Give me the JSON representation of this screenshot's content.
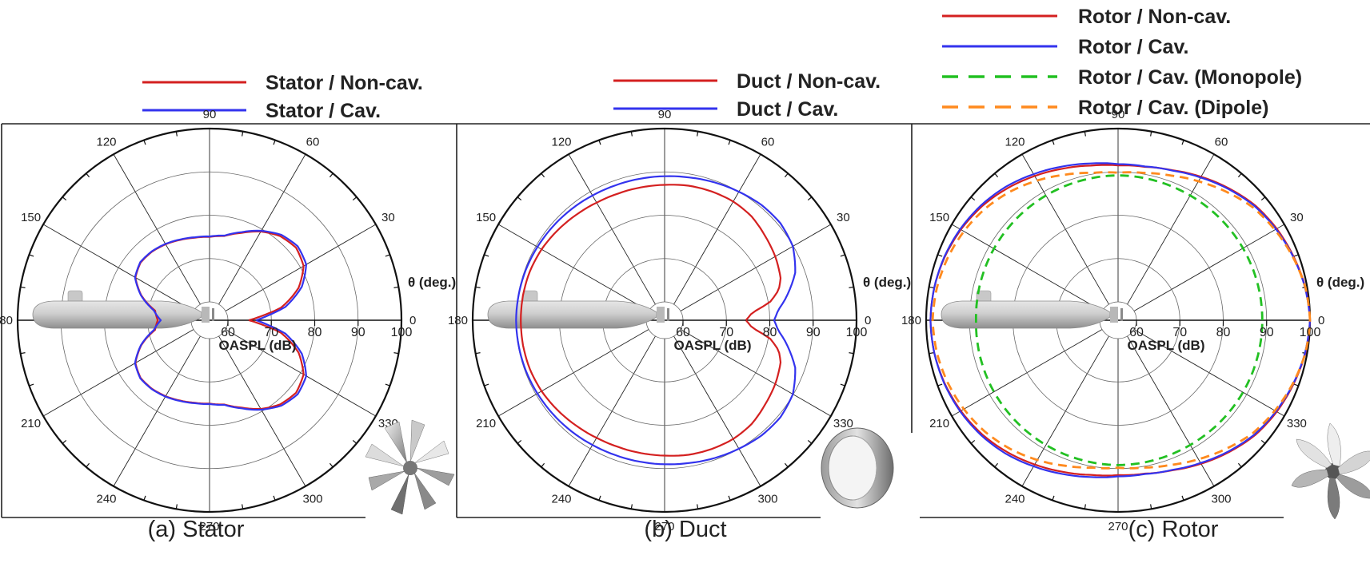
{
  "chart_data": [
    {
      "type": "polar-line",
      "caption": "(a) Stator",
      "angular_axis_label": "θ (deg.)",
      "radial_axis_label": "OASPL (dB)",
      "angle_ticks": [
        "0",
        "30",
        "60",
        "90",
        "120",
        "150",
        "180",
        "210",
        "240",
        "270",
        "300",
        "330"
      ],
      "radial_ticks": [
        "60",
        "70",
        "80",
        "90",
        "100"
      ],
      "r_range": [
        60,
        100
      ],
      "component": "stator",
      "series": [
        {
          "name": "Stator / Non-cav.",
          "color": "#d42020",
          "dash": "solid",
          "profile": [
            [
              0,
              64.8
            ],
            [
              5,
              68
            ],
            [
              10,
              72.5
            ],
            [
              20,
              77.6
            ],
            [
              30,
              80.8
            ],
            [
              40,
              81.8
            ],
            [
              50,
              81.1
            ],
            [
              60,
              79.4
            ],
            [
              70,
              77.2
            ],
            [
              80,
              75.5
            ],
            [
              90,
              75
            ],
            [
              100,
              75.1
            ],
            [
              110,
              75.5
            ],
            [
              120,
              76
            ],
            [
              130,
              76.4
            ],
            [
              140,
              76.5
            ],
            [
              150,
              75.5
            ],
            [
              160,
              72.5
            ],
            [
              170,
              68.5
            ],
            [
              180,
              67.7
            ]
          ]
        },
        {
          "name": "Stator / Cav.",
          "color": "#3333ee",
          "dash": "solid",
          "profile": [
            [
              0,
              66.5
            ],
            [
              5,
              69.5
            ],
            [
              10,
              73.5
            ],
            [
              20,
              78.4
            ],
            [
              30,
              81.5
            ],
            [
              40,
              82.3
            ],
            [
              50,
              81.5
            ],
            [
              60,
              79.6
            ],
            [
              70,
              77.4
            ],
            [
              80,
              75.6
            ],
            [
              90,
              75.1
            ],
            [
              100,
              75.2
            ],
            [
              110,
              75.6
            ],
            [
              120,
              76.1
            ],
            [
              130,
              76.5
            ],
            [
              140,
              76.6
            ],
            [
              150,
              75.6
            ],
            [
              160,
              72.6
            ],
            [
              170,
              68.8
            ],
            [
              180,
              67
            ]
          ]
        }
      ]
    },
    {
      "type": "polar-line",
      "caption": "(b) Duct",
      "angular_axis_label": "θ (deg.)",
      "radial_axis_label": "OASPL (dB)",
      "angle_ticks": [
        "0",
        "30",
        "60",
        "90",
        "120",
        "150",
        "180",
        "210",
        "240",
        "270",
        "300",
        "330"
      ],
      "radial_ticks": [
        "60",
        "70",
        "80",
        "90",
        "100"
      ],
      "r_range": [
        60,
        100
      ],
      "component": "duct",
      "series": [
        {
          "name": "Duct / Non-cav.",
          "color": "#d42020",
          "dash": "solid",
          "profile": [
            [
              0,
              74.5
            ],
            [
              5,
              76
            ],
            [
              10,
              80.5
            ],
            [
              15,
              83
            ],
            [
              20,
              84.2
            ],
            [
              30,
              85.2
            ],
            [
              40,
              86
            ],
            [
              50,
              87
            ],
            [
              60,
              87.4
            ],
            [
              70,
              87.4
            ],
            [
              80,
              87.3
            ],
            [
              90,
              87
            ],
            [
              100,
              86.9
            ],
            [
              110,
              86.9
            ],
            [
              120,
              87.1
            ],
            [
              130,
              87.5
            ],
            [
              140,
              88
            ],
            [
              150,
              88.5
            ],
            [
              160,
              88.8
            ],
            [
              170,
              88.9
            ],
            [
              180,
              88.9
            ]
          ]
        },
        {
          "name": "Duct / Cav.",
          "color": "#3333ee",
          "dash": "solid",
          "profile": [
            [
              0,
              81
            ],
            [
              5,
              82
            ],
            [
              10,
              84
            ],
            [
              20,
              87.8
            ],
            [
              30,
              89.9
            ],
            [
              40,
              90.6
            ],
            [
              50,
              90.5
            ],
            [
              60,
              90
            ],
            [
              70,
              89.6
            ],
            [
              80,
              89.2
            ],
            [
              90,
              89
            ],
            [
              100,
              88.9
            ],
            [
              110,
              88.9
            ],
            [
              120,
              89
            ],
            [
              130,
              89.2
            ],
            [
              140,
              89.4
            ],
            [
              150,
              89.6
            ],
            [
              160,
              89.8
            ],
            [
              170,
              89.9
            ],
            [
              180,
              90
            ]
          ]
        }
      ]
    },
    {
      "type": "polar-line",
      "caption": "(c) Rotor",
      "angular_axis_label": "θ (deg.)",
      "radial_axis_label": "OASPL (dB)",
      "angle_ticks": [
        "0",
        "30",
        "60",
        "90",
        "120",
        "150",
        "180",
        "210",
        "240",
        "270",
        "300",
        "330"
      ],
      "radial_ticks": [
        "60",
        "70",
        "80",
        "90",
        "100"
      ],
      "r_range": [
        60,
        100
      ],
      "component": "rotor",
      "series": [
        {
          "name": "Rotor / Non-cav.",
          "color": "#d42020",
          "dash": "solid",
          "profile": [
            [
              0,
              100
            ],
            [
              10,
              99.6
            ],
            [
              20,
              98.8
            ],
            [
              30,
              98
            ],
            [
              40,
              97
            ],
            [
              50,
              95.5
            ],
            [
              60,
              94
            ],
            [
              70,
              92.6
            ],
            [
              80,
              91.7
            ],
            [
              90,
              91.5
            ],
            [
              100,
              92
            ],
            [
              110,
              93
            ],
            [
              120,
              94.2
            ],
            [
              130,
              95.5
            ],
            [
              140,
              96.7
            ],
            [
              150,
              97.6
            ],
            [
              160,
              98.3
            ],
            [
              170,
              98.8
            ],
            [
              180,
              99
            ]
          ]
        },
        {
          "name": "Rotor / Cav.",
          "color": "#3333ee",
          "dash": "solid",
          "profile": [
            [
              0,
              100
            ],
            [
              10,
              99.5
            ],
            [
              20,
              98.7
            ],
            [
              30,
              97.8
            ],
            [
              40,
              96.8
            ],
            [
              50,
              95.3
            ],
            [
              60,
              93.8
            ],
            [
              70,
              92.5
            ],
            [
              80,
              91.8
            ],
            [
              90,
              91.8
            ],
            [
              100,
              92.5
            ],
            [
              110,
              93.5
            ],
            [
              120,
              94.7
            ],
            [
              130,
              96
            ],
            [
              140,
              97
            ],
            [
              150,
              97.8
            ],
            [
              160,
              98.4
            ],
            [
              170,
              98.8
            ],
            [
              180,
              99
            ]
          ]
        },
        {
          "name": "Rotor / Cav. (Monopole)",
          "color": "#22c022",
          "dash": "dashed",
          "profile": [
            [
              0,
              89
            ],
            [
              30,
              89
            ],
            [
              60,
              89
            ],
            [
              90,
              89.2
            ],
            [
              120,
              89
            ],
            [
              150,
              88.8
            ],
            [
              180,
              88.5
            ]
          ]
        },
        {
          "name": "Rotor / Cav. (Dipole)",
          "color": "#ff8a1e",
          "dash": "dashed",
          "profile": [
            [
              0,
              100
            ],
            [
              10,
              99.6
            ],
            [
              20,
              98.6
            ],
            [
              30,
              97.5
            ],
            [
              40,
              96.3
            ],
            [
              50,
              94.5
            ],
            [
              60,
              92.8
            ],
            [
              70,
              91.3
            ],
            [
              80,
              90.3
            ],
            [
              90,
              89.8
            ],
            [
              100,
              90.3
            ],
            [
              110,
              91.5
            ],
            [
              120,
              93
            ],
            [
              130,
              94.5
            ],
            [
              140,
              95.8
            ],
            [
              150,
              96.8
            ],
            [
              160,
              97.6
            ],
            [
              170,
              98.2
            ],
            [
              180,
              98.5
            ]
          ]
        }
      ]
    }
  ],
  "icons": [
    "submarine-hull-icon",
    "stator-icon",
    "duct-icon",
    "rotor-icon"
  ]
}
